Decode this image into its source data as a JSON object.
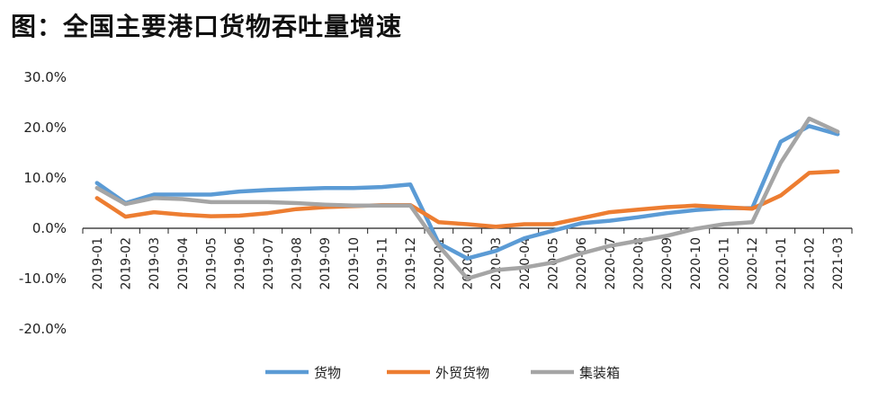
{
  "chart_data": {
    "type": "line",
    "title": "图：全国主要港口货物吞吐量增速",
    "ylim": [
      -20,
      30
    ],
    "yticks": [
      30,
      20,
      10,
      0,
      -10,
      -20
    ],
    "ytick_labels": [
      "30.0%",
      "20.0%",
      "10.0%",
      "0.0%",
      "-10.0%",
      "-20.0%"
    ],
    "categories": [
      "2019-01",
      "2019-02",
      "2019-03",
      "2019-04",
      "2019-05",
      "2019-06",
      "2019-07",
      "2019-08",
      "2019-09",
      "2019-10",
      "2019-11",
      "2019-12",
      "2020-01",
      "2020-02",
      "2020-03",
      "2020-04",
      "2020-05",
      "2020-06",
      "2020-07",
      "2020-08",
      "2020-09",
      "2020-10",
      "2020-11",
      "2020-12",
      "2021-01",
      "2021-02",
      "2021-03"
    ],
    "legend_position": "bottom",
    "series": [
      {
        "name": "货物",
        "color": "#5B9BD5",
        "values": [
          9.0,
          5.0,
          6.7,
          6.7,
          6.7,
          7.3,
          7.6,
          7.8,
          8.0,
          8.0,
          8.2,
          8.7,
          -3.0,
          -6.0,
          -4.5,
          -2.0,
          -0.5,
          1.0,
          1.5,
          2.2,
          3.0,
          3.6,
          4.0,
          4.0,
          17.2,
          20.3,
          18.7
        ]
      },
      {
        "name": "外贸货物",
        "color": "#ED7D31",
        "values": [
          6.0,
          2.3,
          3.2,
          2.7,
          2.4,
          2.5,
          3.0,
          3.8,
          4.2,
          4.4,
          4.6,
          4.6,
          1.2,
          0.8,
          0.3,
          0.8,
          0.8,
          2.0,
          3.2,
          3.7,
          4.2,
          4.5,
          4.2,
          3.9,
          6.5,
          11.0,
          11.3
        ]
      },
      {
        "name": "集装箱",
        "color": "#A5A5A5",
        "values": [
          8.0,
          4.8,
          6.0,
          5.8,
          5.2,
          5.2,
          5.2,
          5.0,
          4.7,
          4.5,
          4.5,
          4.5,
          -3.5,
          -10.0,
          -8.3,
          -7.8,
          -6.8,
          -5.0,
          -3.5,
          -2.5,
          -1.5,
          -0.1,
          0.8,
          1.2,
          13.0,
          21.8,
          19.2
        ]
      }
    ]
  }
}
